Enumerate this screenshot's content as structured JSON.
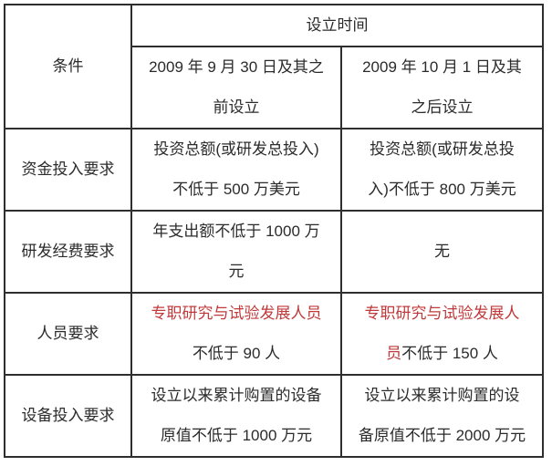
{
  "table": {
    "header": {
      "condition_label": "条件",
      "time_header": "设立时间",
      "period_before": "2009 年 9 月 30 日及其之\n前设立",
      "period_after": "2009 年 10 月 1 日及其\n之后设立"
    },
    "rows": [
      {
        "label": "资金投入要求",
        "col1": "投资总额(或研发总投入)\n不低于 500 万美元",
        "col2": "投资总额(或研发总投\n入)不低于 800 万美元"
      },
      {
        "label": "研发经费要求",
        "col1": "年支出额不低于 1000 万\n元",
        "col2": "无"
      },
      {
        "label": "人员要求",
        "col1_segments": [
          {
            "text": "专职研究与试验发展人员",
            "red": true,
            "br": true
          },
          {
            "text": "不低于 90 人"
          }
        ],
        "col2_segments": [
          {
            "text": "专职研究与试验发展人",
            "red": true,
            "br": true
          },
          {
            "text": "员",
            "red": true
          },
          {
            "text": "不低于 150 人"
          }
        ]
      },
      {
        "label": "设备投入要求",
        "col1": "设立以来累计购置的设备\n原值不低于 1000 万元",
        "col2": "设立以来累计购置的设\n备原值不低于 2000 万元"
      }
    ],
    "colors": {
      "highlight_text": "#c0393b",
      "border": "#2e2e2e",
      "text": "#2b2b2b",
      "background": "#ffffff"
    }
  }
}
